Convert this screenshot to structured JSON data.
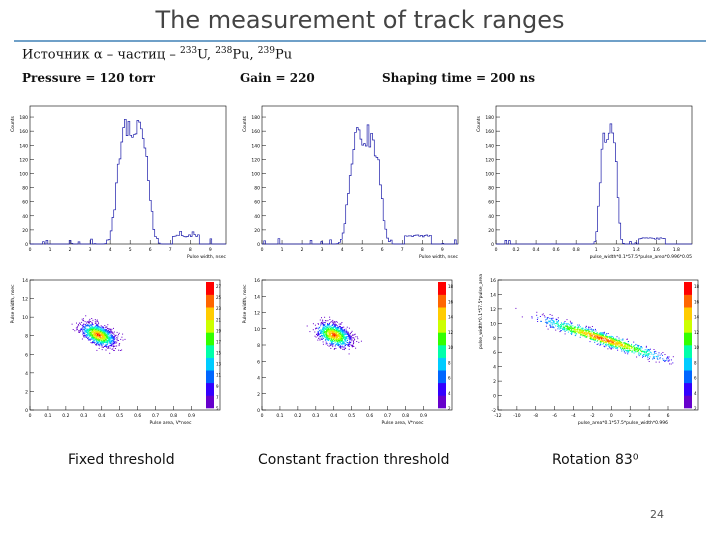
{
  "title": "The measurement of track ranges",
  "source_line": "Источник α – частиц – 233U, 238Pu, 239Pu",
  "params": {
    "pressure": "Pressure = 120 torr",
    "gain": "Gain = 220",
    "shaping": "Shaping time = 200 ns"
  },
  "captions": [
    "Fixed threshold",
    "Constant fraction threshold",
    "Rotation 83⁰"
  ],
  "page_number": "24",
  "colors": {
    "histogram": "#1b1baa",
    "rule": "#6fa0c8"
  },
  "histograms": [
    {
      "ylabel": "Counts",
      "xlabel": "Pulse width, nsec",
      "yticks": [
        "0",
        "20",
        "40",
        "60",
        "80",
        "100",
        "120",
        "140",
        "160",
        "180"
      ],
      "xticks": [
        "0",
        "1",
        "2",
        "3",
        "4",
        "5",
        "6",
        "7",
        "8",
        "9"
      ]
    },
    {
      "ylabel": "Counts",
      "xlabel": "Pulse width, nsec",
      "yticks": [
        "0",
        "20",
        "40",
        "60",
        "80",
        "100",
        "120",
        "140",
        "160",
        "180"
      ],
      "xticks": [
        "0",
        "1",
        "2",
        "3",
        "4",
        "5",
        "6",
        "7",
        "8",
        "9"
      ]
    },
    {
      "ylabel": "Counts",
      "xlabel": "pulse_width*0.1*57.5*pulse_area*0.996*0.05",
      "yticks": [
        "0",
        "20",
        "40",
        "60",
        "80",
        "100",
        "120",
        "140",
        "160",
        "180"
      ],
      "xticks": [
        "0",
        "0.2",
        "0.4",
        "0.6",
        "0.8",
        "1",
        "1.2",
        "1.4",
        "1.6",
        "1.8"
      ]
    }
  ],
  "scatters": [
    {
      "ylabel": "Pulse width, nsec",
      "xlabel": "Pulse area, V*nsec",
      "yticks": [
        "0",
        "2",
        "4",
        "6",
        "8",
        "10",
        "12",
        "14"
      ],
      "xticks": [
        "0",
        "0.1",
        "0.2",
        "0.3",
        "0.4",
        "0.5",
        "0.6",
        "0.7",
        "0.8",
        "0.9"
      ],
      "zticks": [
        "5",
        "7",
        "9",
        "11",
        "13",
        "15",
        "17",
        "19",
        "21",
        "23",
        "25",
        "27"
      ]
    },
    {
      "ylabel": "Pulse width, nsec",
      "xlabel": "Pulse area, V*nsec",
      "yticks": [
        "0",
        "2",
        "4",
        "6",
        "8",
        "10",
        "12",
        "14",
        "16"
      ],
      "xticks": [
        "0",
        "0.1",
        "0.2",
        "0.3",
        "0.4",
        "0.5",
        "0.6",
        "0.7",
        "0.8",
        "0.9"
      ],
      "zticks": [
        "2",
        "4",
        "6",
        "8",
        "10",
        "12",
        "14",
        "16",
        "18"
      ]
    },
    {
      "ylabel": "pulse_width*0.1*57.5*pulse_area*0.996",
      "xlabel": "pulse_area*0.1*57.5*pulse_width*0.996",
      "yticks": [
        "-2",
        "0",
        "2",
        "4",
        "6",
        "8",
        "10",
        "12",
        "14",
        "16"
      ],
      "xticks": [
        "-12",
        "-10",
        "-8",
        "-6",
        "-4",
        "-2",
        "0",
        "2",
        "4",
        "6"
      ],
      "zticks": [
        "2",
        "4",
        "6",
        "8",
        "10",
        "12",
        "14",
        "16",
        "18"
      ]
    }
  ]
}
